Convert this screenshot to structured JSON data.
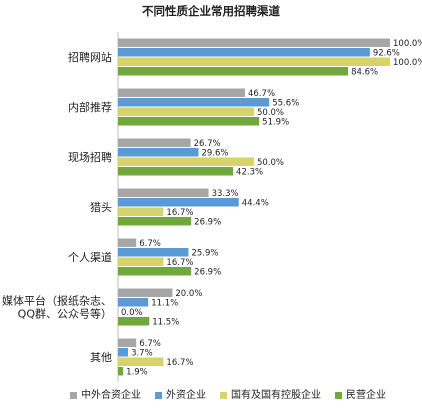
{
  "chart_data": {
    "type": "bar",
    "orientation": "horizontal",
    "title": "不同性质企业常用招聘渠道",
    "categories": [
      [
        "招聘网站"
      ],
      [
        "内部推荐"
      ],
      [
        "现场招聘"
      ],
      [
        "猎头"
      ],
      [
        "个人渠道"
      ],
      [
        "媒体平台（报纸杂志、",
        "QQ群、公众号等）"
      ],
      [
        "其他"
      ]
    ],
    "series": [
      {
        "name": "中外合资企业",
        "color": "#a6a6a6",
        "values": [
          100.0,
          46.7,
          26.7,
          33.3,
          6.7,
          20.0,
          6.7
        ],
        "labels": [
          "100.0%",
          "46.7%",
          "26.7%",
          "33.3%",
          "6.7%",
          "20.0%",
          "6.7%"
        ]
      },
      {
        "name": "外资企业",
        "color": "#5b9bd5",
        "values": [
          92.6,
          55.6,
          29.6,
          44.4,
          25.9,
          11.1,
          3.7
        ],
        "labels": [
          "92.6%",
          "55.6%",
          "29.6%",
          "44.4%",
          "25.9%",
          "11.1%",
          "3.7%"
        ]
      },
      {
        "name": "国有及国有控股企业",
        "color": "#d6d36a",
        "values": [
          100.0,
          50.0,
          50.0,
          16.7,
          16.7,
          0.0,
          16.7
        ],
        "labels": [
          "100.0%",
          "50.0%",
          "50.0%",
          "16.7%",
          "16.7%",
          "0.0%",
          "16.7%"
        ]
      },
      {
        "name": "民营企业",
        "color": "#70a83c",
        "values": [
          84.6,
          51.9,
          42.3,
          26.9,
          26.9,
          11.5,
          1.9
        ],
        "labels": [
          "84.6%",
          "51.9%",
          "42.3%",
          "26.9%",
          "26.9%",
          "11.5%",
          "1.9%"
        ]
      }
    ],
    "xlim": [
      0,
      100
    ],
    "legend_position": "bottom",
    "grid": false
  }
}
